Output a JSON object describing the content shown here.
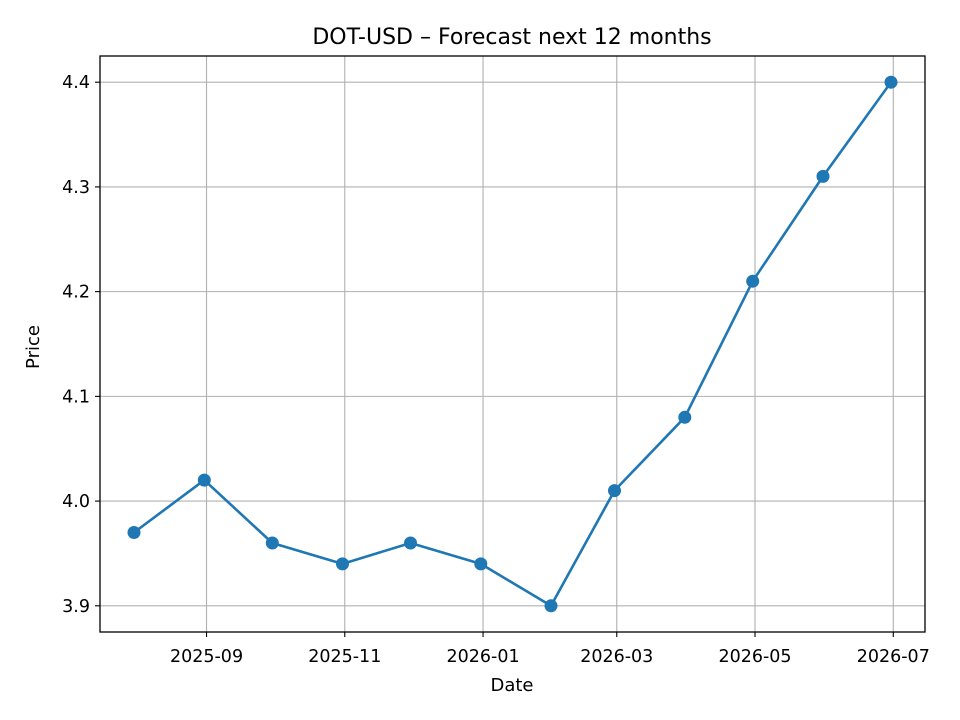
{
  "chart_data": {
    "type": "line",
    "title": "DOT-USD – Forecast next 12 months",
    "xlabel": "Date",
    "ylabel": "Price",
    "x": [
      "2025-07-31",
      "2025-08-31",
      "2025-09-30",
      "2025-10-31",
      "2025-11-30",
      "2025-12-31",
      "2026-01-31",
      "2026-02-28",
      "2026-03-31",
      "2026-04-30",
      "2026-05-31",
      "2026-06-30"
    ],
    "series": [
      {
        "name": "",
        "values": [
          3.97,
          4.02,
          3.96,
          3.94,
          3.96,
          3.94,
          3.9,
          4.01,
          4.08,
          4.21,
          4.31,
          4.4
        ]
      }
    ],
    "xticks": [
      "2025-09",
      "2025-11",
      "2026-01",
      "2026-03",
      "2026-05",
      "2026-07"
    ],
    "yticks": [
      "3.9",
      "4.0",
      "4.1",
      "4.2",
      "4.3",
      "4.4"
    ],
    "ylim": [
      3.875,
      4.425
    ],
    "xlim": [
      "2025-07-16",
      "2026-07-15"
    ],
    "grid": true,
    "line_color": "#1f77b4"
  }
}
